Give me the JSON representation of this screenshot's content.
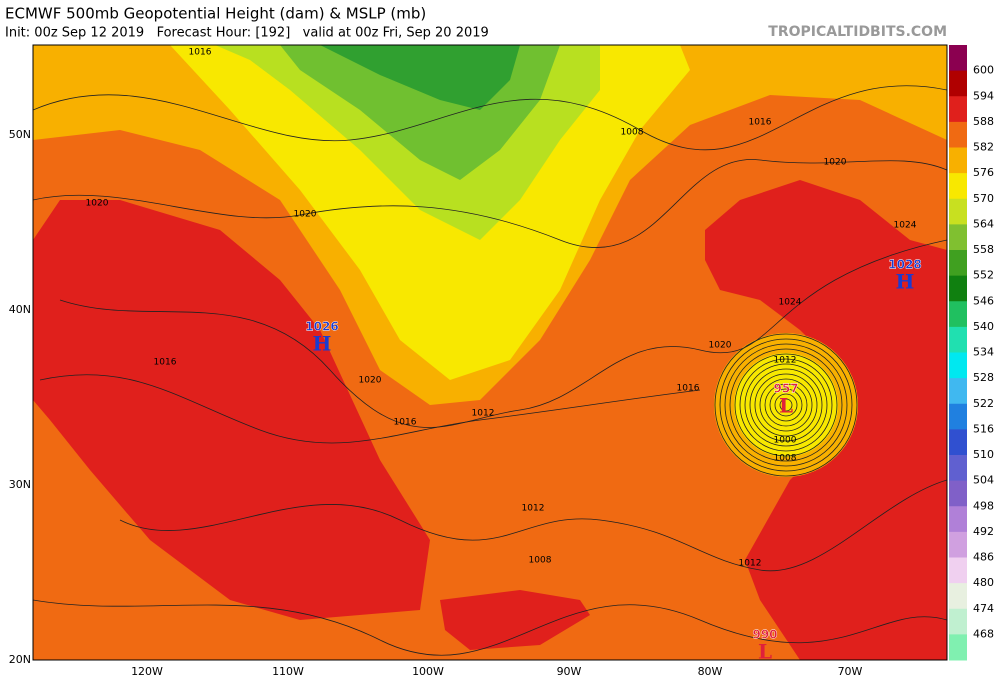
{
  "header": {
    "title": "ECMWF 500mb Geopotential Height (dam) & MSLP (mb)",
    "subtitle": "Init: 00z Sep 12 2019   Forecast Hour: [192]   valid at 00z Fri, Sep 20 2019",
    "site": "TROPICALTIDBITS.COM"
  },
  "colorbar": {
    "labels": [
      "600",
      "594",
      "588",
      "582",
      "576",
      "570",
      "564",
      "558",
      "552",
      "546",
      "540",
      "534",
      "528",
      "522",
      "516",
      "510",
      "504",
      "498",
      "492",
      "486",
      "480",
      "474",
      "468"
    ]
  },
  "axes": {
    "lat_labels": [
      "50N",
      "40N",
      "30N",
      "20N"
    ],
    "lon_labels": [
      "120W",
      "110W",
      "100W",
      "90W",
      "80W",
      "70W"
    ]
  },
  "pressure_centers": [
    {
      "letter": "H",
      "value": "1028"
    },
    {
      "letter": "H",
      "value": "1026"
    },
    {
      "letter": "L",
      "value": "957"
    },
    {
      "letter": "L",
      "value": "990"
    }
  ],
  "isobar_labels": [
    "1016",
    "1020",
    "1008",
    "1016",
    "1020",
    "1020",
    "1024",
    "1016",
    "1020",
    "1016",
    "1012",
    "1020",
    "1012",
    "1016",
    "1000",
    "1008",
    "1012",
    "1012",
    "1008",
    "1024"
  ]
}
